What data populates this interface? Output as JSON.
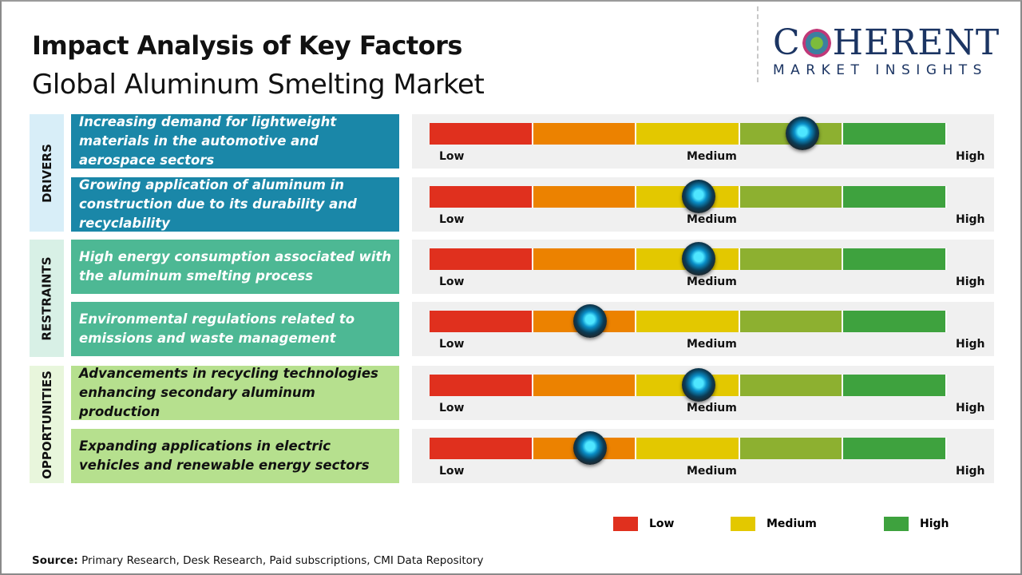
{
  "header": {
    "title": "Impact Analysis of Key Factors",
    "subtitle": "Global Aluminum Smelting Market"
  },
  "logo": {
    "main_before": "C",
    "main_after": "HERENT",
    "sub": "MARKET INSIGHTS"
  },
  "colors": {
    "low": "#e0301e",
    "low_mid": "#ec8200",
    "medium": "#e3c800",
    "mid_high": "#8db030",
    "high": "#3ea23e",
    "drivers": "#1a87a8",
    "restraints": "#4db894",
    "opportunities": "#b6e08e"
  },
  "scale_labels": {
    "low": "Low",
    "medium": "Medium",
    "high": "High"
  },
  "categories": [
    {
      "label": "DRIVERS",
      "factors": [
        {
          "text": "Increasing demand for lightweight materials in the automotive and aerospace sectors",
          "impact": 0.72
        },
        {
          "text": "Growing application of aluminum in construction due to its durability and recyclability",
          "impact": 0.52
        }
      ]
    },
    {
      "label": "RESTRAINTS",
      "factors": [
        {
          "text": "High energy consumption associated with the aluminum smelting process",
          "impact": 0.52
        },
        {
          "text": "Environmental regulations related to emissions and waste management",
          "impact": 0.31
        }
      ]
    },
    {
      "label": "OPPORTUNITIES",
      "factors": [
        {
          "text": "Advancements in recycling technologies enhancing secondary aluminum production",
          "impact": 0.52
        },
        {
          "text": "Expanding applications in electric vehicles and renewable energy sectors",
          "impact": 0.31
        }
      ]
    }
  ],
  "legend": [
    {
      "label": "Low",
      "color": "#e0301e"
    },
    {
      "label": "Medium",
      "color": "#e3c800"
    },
    {
      "label": "High",
      "color": "#3ea23e"
    }
  ],
  "source": {
    "label": "Source:",
    "text": " Primary Research, Desk Research, Paid subscriptions, CMI Data Repository"
  }
}
